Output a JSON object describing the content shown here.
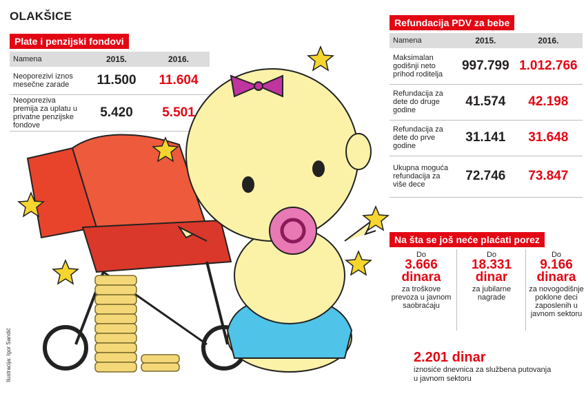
{
  "title": "OLAKŠICE",
  "salary": {
    "header": "Plate i penzijski fondovi",
    "columns": [
      "Namena",
      "2015.",
      "2016."
    ],
    "rows": [
      {
        "label": "Neoporezivi iznos mesečne zarade",
        "v2015": "11.500",
        "v2016": "11.604"
      },
      {
        "label": "Neoporeziva premija za uplatu u privatne penzijske fondove",
        "v2015": "5.420",
        "v2016": "5.501"
      }
    ]
  },
  "vat": {
    "header": "Refundacija PDV za bebe",
    "columns": [
      "Namena",
      "2015.",
      "2016."
    ],
    "rows": [
      {
        "label": "Maksimalan godišnji neto prihod roditelja",
        "v2015": "997.799",
        "v2016": "1.012.766"
      },
      {
        "label": "Refundacija za dete do druge godine",
        "v2015": "41.574",
        "v2016": "42.198"
      },
      {
        "label": "Refundacija za dete do prve godine",
        "v2015": "31.141",
        "v2016": "31.648"
      },
      {
        "label": "Ukupna moguća refundacija za više dece",
        "v2015": "72.746",
        "v2016": "73.847"
      }
    ]
  },
  "untaxed": {
    "header": "Na šta se još neće plaćati porez",
    "items": [
      {
        "prefix": "Do",
        "amount": "3.666",
        "unit": "dinara",
        "desc": "za troškove prevoza u javnom saobraćaju"
      },
      {
        "prefix": "Do",
        "amount": "18.331",
        "unit": "dinar",
        "desc": "za jubilarne nagrade"
      },
      {
        "prefix": "Do",
        "amount": "9.166",
        "unit": "dinara",
        "desc": "za novogodišnje poklone deci zaposlenih u javnom sektoru"
      }
    ],
    "per_diem": {
      "amount": "2.201 dinar",
      "desc": "iznosiće dnevnica za službena putovanja u javnom sektoru"
    }
  },
  "credit": "Ilustracija: Igor Sandić"
}
